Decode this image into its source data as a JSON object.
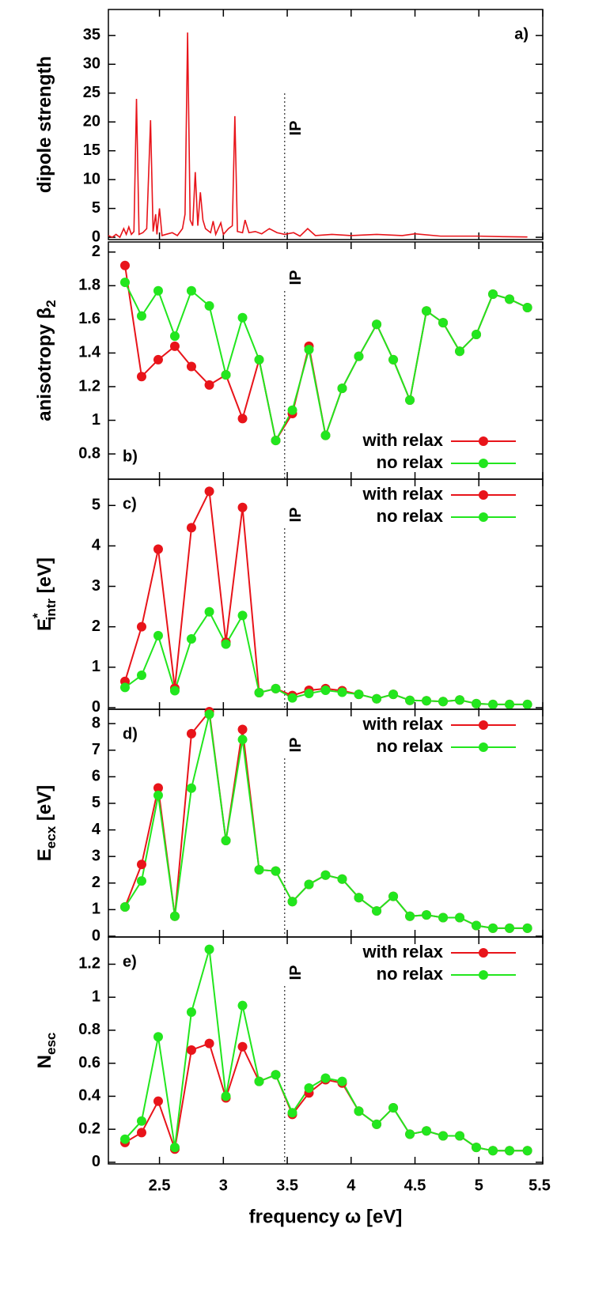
{
  "chart_data": [
    {
      "type": "line",
      "ylabel": {
        "text": "dipole strength"
      },
      "panel_label": "a)",
      "label_corner": "upper right",
      "vline": {
        "x": 3.48,
        "label": "IP"
      },
      "color": "#e8141a",
      "x": [
        2.1,
        2.13,
        2.16,
        2.19,
        2.22,
        2.24,
        2.26,
        2.28,
        2.3,
        2.32,
        2.34,
        2.37,
        2.4,
        2.43,
        2.45,
        2.47,
        2.48,
        2.5,
        2.52,
        2.55,
        2.6,
        2.64,
        2.68,
        2.7,
        2.72,
        2.74,
        2.76,
        2.78,
        2.8,
        2.82,
        2.84,
        2.86,
        2.9,
        2.92,
        2.94,
        2.98,
        3.0,
        3.04,
        3.07,
        3.09,
        3.11,
        3.15,
        3.17,
        3.2,
        3.25,
        3.3,
        3.36,
        3.42,
        3.48,
        3.55,
        3.6,
        3.66,
        3.72,
        3.85,
        4.0,
        4.2,
        4.4,
        4.5,
        4.7,
        5.0,
        5.2,
        5.38
      ],
      "values": [
        0.3,
        0,
        0.5,
        0,
        1.5,
        0.5,
        1.8,
        0.5,
        1,
        24,
        0.5,
        0.8,
        1.5,
        20.3,
        1,
        4,
        0.5,
        5,
        0.3,
        0.5,
        0.8,
        0.3,
        1.5,
        4,
        35.5,
        3,
        2,
        11.3,
        2,
        7.8,
        3,
        1.5,
        0.8,
        2.8,
        0.5,
        2.5,
        0.5,
        1.5,
        2,
        21,
        1,
        0.8,
        3,
        0.8,
        1,
        0.6,
        1.5,
        0.8,
        0.5,
        0.8,
        0.2,
        1.5,
        0.3,
        0.5,
        0.3,
        0.5,
        0.3,
        0.6,
        0.2,
        0.2,
        0.1,
        0.05
      ],
      "xlim": [
        2.1,
        5.5
      ],
      "xticks": [
        2.5,
        3,
        3.5,
        4,
        4.5,
        5,
        5.5
      ],
      "ylim": [
        -0.4,
        39.5
      ],
      "yticks": [
        0,
        5,
        10,
        15,
        20,
        25,
        30,
        35
      ]
    },
    {
      "type": "line",
      "ylabel": {
        "text": "anisotropy β",
        "sub": "2"
      },
      "panel_label": "b)",
      "label_corner": "lower left",
      "vline": {
        "x": 3.48,
        "label": "IP"
      },
      "legend": "lower right",
      "x": [
        2.23,
        2.36,
        2.49,
        2.62,
        2.75,
        2.89,
        3.02,
        3.15,
        3.28,
        3.41,
        3.54,
        3.67,
        3.8,
        3.93,
        4.06,
        4.2,
        4.33,
        4.46,
        4.59,
        4.72,
        4.85,
        4.98,
        5.11,
        5.24,
        5.38
      ],
      "series": [
        {
          "name": "with relax",
          "color": "#e8141a",
          "values": [
            1.92,
            1.26,
            1.36,
            1.44,
            1.32,
            1.21,
            1.27,
            1.01,
            1.36,
            0.88,
            1.04,
            1.44,
            0.91,
            1.19,
            1.38,
            1.57,
            1.36,
            1.12,
            1.65,
            1.58,
            1.41,
            1.51,
            1.75,
            1.72,
            1.67
          ]
        },
        {
          "name": "no relax",
          "color": "#22e61e",
          "values": [
            1.82,
            1.62,
            1.77,
            1.5,
            1.77,
            1.68,
            1.27,
            1.61,
            1.36,
            0.88,
            1.06,
            1.42,
            0.91,
            1.19,
            1.38,
            1.57,
            1.36,
            1.12,
            1.65,
            1.58,
            1.41,
            1.51,
            1.75,
            1.72,
            1.67
          ]
        }
      ],
      "xlim": [
        2.1,
        5.5
      ],
      "xticks": [
        2.5,
        3,
        3.5,
        4,
        4.5,
        5,
        5.5
      ],
      "ylim": [
        0.65,
        2.06
      ],
      "yticks": [
        0.8,
        1,
        1.2,
        1.4,
        1.6,
        1.8,
        2
      ]
    },
    {
      "type": "line",
      "ylabel": {
        "text": "E",
        "sup": "*",
        "sub": "intr",
        "unit": " [eV]"
      },
      "panel_label": "c)",
      "label_corner": "upper left",
      "vline": {
        "x": 3.48,
        "label": "IP"
      },
      "legend": "upper right",
      "x": [
        2.23,
        2.36,
        2.49,
        2.62,
        2.75,
        2.89,
        3.02,
        3.15,
        3.28,
        3.41,
        3.54,
        3.67,
        3.8,
        3.93,
        4.06,
        4.2,
        4.33,
        4.46,
        4.59,
        4.72,
        4.85,
        4.98,
        5.11,
        5.24,
        5.38
      ],
      "series": [
        {
          "name": "with relax",
          "color": "#e8141a",
          "values": [
            0.65,
            2.0,
            3.92,
            0.48,
            4.45,
            5.35,
            1.62,
            4.95,
            0.37,
            0.47,
            0.3,
            0.43,
            0.47,
            0.42,
            0.33,
            0.22,
            0.33,
            0.18,
            0.17,
            0.15,
            0.19,
            0.1,
            0.08,
            0.08,
            0.08
          ]
        },
        {
          "name": "no relax",
          "color": "#22e61e",
          "values": [
            0.5,
            0.8,
            1.78,
            0.42,
            1.7,
            2.37,
            1.57,
            2.28,
            0.37,
            0.47,
            0.24,
            0.35,
            0.43,
            0.38,
            0.33,
            0.22,
            0.33,
            0.18,
            0.17,
            0.15,
            0.19,
            0.1,
            0.08,
            0.08,
            0.08
          ]
        }
      ],
      "xlim": [
        2.1,
        5.5
      ],
      "xticks": [
        2.5,
        3,
        3.5,
        4,
        4.5,
        5,
        5.5
      ],
      "ylim": [
        -0.04,
        5.65
      ],
      "yticks": [
        0,
        1,
        2,
        3,
        4,
        5
      ]
    },
    {
      "type": "line",
      "ylabel": {
        "text": "E",
        "sub": "ecx",
        "unit": " [eV]"
      },
      "panel_label": "d)",
      "label_corner": "upper left",
      "vline": {
        "x": 3.48,
        "label": "IP"
      },
      "legend": "upper right",
      "x": [
        2.23,
        2.36,
        2.49,
        2.62,
        2.75,
        2.89,
        3.02,
        3.15,
        3.28,
        3.41,
        3.54,
        3.67,
        3.8,
        3.93,
        4.06,
        4.2,
        4.33,
        4.46,
        4.59,
        4.72,
        4.85,
        4.98,
        5.11,
        5.24,
        5.38
      ],
      "series": [
        {
          "name": "with relax",
          "color": "#e8141a",
          "values": [
            1.1,
            2.7,
            5.58,
            0.75,
            7.62,
            8.45,
            3.6,
            7.78,
            2.5,
            2.45,
            1.3,
            1.95,
            2.3,
            2.15,
            1.45,
            0.95,
            1.5,
            0.75,
            0.8,
            0.7,
            0.7,
            0.4,
            0.3,
            0.3,
            0.3
          ]
        },
        {
          "name": "no relax",
          "color": "#22e61e",
          "values": [
            1.1,
            2.08,
            5.3,
            0.75,
            5.57,
            8.35,
            3.6,
            7.4,
            2.5,
            2.45,
            1.3,
            1.95,
            2.3,
            2.15,
            1.45,
            0.95,
            1.5,
            0.75,
            0.8,
            0.7,
            0.7,
            0.4,
            0.3,
            0.3,
            0.3
          ]
        }
      ],
      "xlim": [
        2.1,
        5.5
      ],
      "xticks": [
        2.5,
        3,
        3.5,
        4,
        4.5,
        5,
        5.5
      ],
      "ylim": [
        -0.03,
        8.54
      ],
      "yticks": [
        0,
        1,
        2,
        3,
        4,
        5,
        6,
        7,
        8
      ]
    },
    {
      "type": "line",
      "ylabel": {
        "text": "N",
        "sub": "esc"
      },
      "panel_label": "e)",
      "label_corner": "upper left",
      "vline": {
        "x": 3.48,
        "label": "IP"
      },
      "legend": "upper right",
      "xlabel": "frequency ω [eV]",
      "x": [
        2.23,
        2.36,
        2.49,
        2.62,
        2.75,
        2.89,
        3.02,
        3.15,
        3.28,
        3.41,
        3.54,
        3.67,
        3.8,
        3.93,
        4.06,
        4.2,
        4.33,
        4.46,
        4.59,
        4.72,
        4.85,
        4.98,
        5.11,
        5.24,
        5.38
      ],
      "series": [
        {
          "name": "with relax",
          "color": "#e8141a",
          "values": [
            0.12,
            0.18,
            0.37,
            0.08,
            0.68,
            0.72,
            0.39,
            0.7,
            0.49,
            0.53,
            0.29,
            0.42,
            0.5,
            0.48,
            0.31,
            0.23,
            0.33,
            0.17,
            0.19,
            0.16,
            0.16,
            0.09,
            0.07,
            0.07,
            0.07
          ]
        },
        {
          "name": "no relax",
          "color": "#22e61e",
          "values": [
            0.14,
            0.25,
            0.76,
            0.09,
            0.91,
            1.29,
            0.4,
            0.95,
            0.49,
            0.53,
            0.3,
            0.45,
            0.51,
            0.49,
            0.31,
            0.23,
            0.33,
            0.17,
            0.19,
            0.16,
            0.16,
            0.09,
            0.07,
            0.07,
            0.07
          ]
        }
      ],
      "xlim": [
        2.1,
        5.5
      ],
      "xticks": [
        2.5,
        3,
        3.5,
        4,
        4.5,
        5,
        5.5
      ],
      "ylim": [
        -0.01,
        1.365
      ],
      "yticks": [
        0,
        0.2,
        0.4,
        0.6,
        0.8,
        1,
        1.2
      ]
    }
  ]
}
